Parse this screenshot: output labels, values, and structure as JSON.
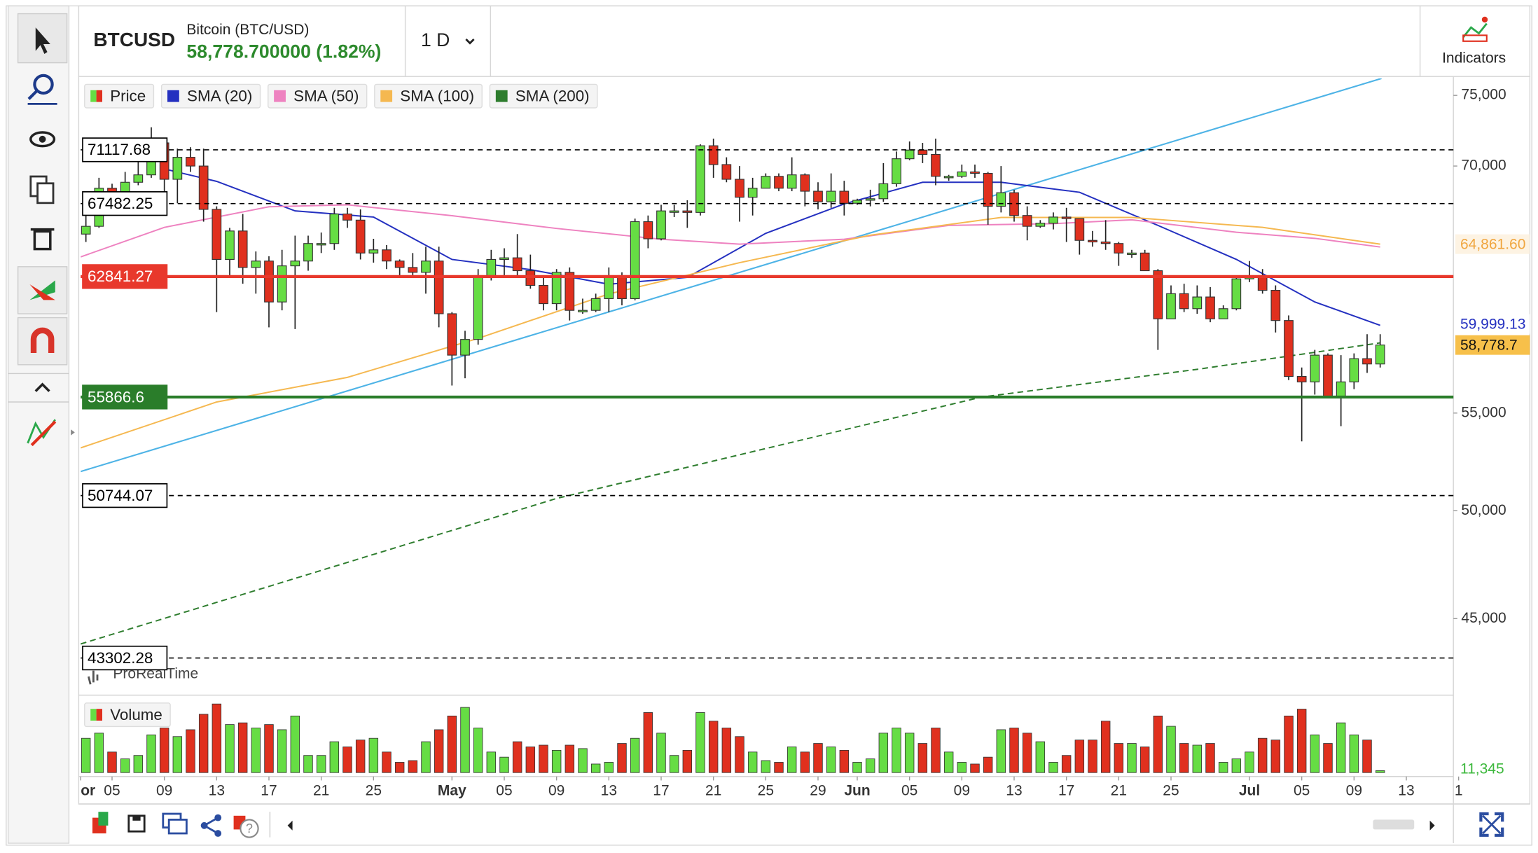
{
  "header": {
    "symbol": "BTCUSD",
    "name": "Bitcoin (BTC/USD)",
    "quote": "58,778.700000 (1.82%)",
    "interval": "1 D",
    "indicators": "Indicators"
  },
  "watermark": "ProRealTime",
  "chart_data": [
    {
      "type": "candlestick",
      "price_label": "Price",
      "up_color": "#66dd44",
      "down_color": "#e0301e",
      "log_scale": true,
      "xlim": [
        -0.4,
        104.6
      ],
      "ylim": [
        41800,
        76250
      ],
      "yticks": [
        {
          "value": 45000,
          "label": "45,000"
        },
        {
          "value": 50000,
          "label": "50,000"
        },
        {
          "value": 55000,
          "label": "55,000"
        },
        {
          "value": 70000,
          "label": "70,000"
        },
        {
          "value": 75000,
          "label": "75,000"
        }
      ],
      "xticks": [
        {
          "value": -0.4,
          "label": "or"
        },
        {
          "value": 2,
          "label": "05"
        },
        {
          "value": 6,
          "label": "09"
        },
        {
          "value": 10,
          "label": "13"
        },
        {
          "value": 14,
          "label": "17"
        },
        {
          "value": 18,
          "label": "21"
        },
        {
          "value": 22,
          "label": "25"
        },
        {
          "value": 28,
          "label": "May"
        },
        {
          "value": 32,
          "label": "05"
        },
        {
          "value": 36,
          "label": "09"
        },
        {
          "value": 40,
          "label": "13"
        },
        {
          "value": 44,
          "label": "17"
        },
        {
          "value": 48,
          "label": "21"
        },
        {
          "value": 52,
          "label": "25"
        },
        {
          "value": 56,
          "label": "29"
        },
        {
          "value": 59,
          "label": "Jun"
        },
        {
          "value": 63,
          "label": "05"
        },
        {
          "value": 67,
          "label": "09"
        },
        {
          "value": 71,
          "label": "13"
        },
        {
          "value": 75,
          "label": "17"
        },
        {
          "value": 79,
          "label": "21"
        },
        {
          "value": 83,
          "label": "25"
        },
        {
          "value": 89,
          "label": "Jul"
        },
        {
          "value": 93,
          "label": "05"
        },
        {
          "value": 97,
          "label": "09"
        },
        {
          "value": 101,
          "label": "13"
        },
        {
          "value": 105,
          "label": "1"
        }
      ],
      "open": [
        65500,
        66000,
        68500,
        67800,
        68900,
        69400,
        71600,
        69100,
        70600,
        70000,
        67100,
        63900,
        65700,
        63400,
        63800,
        61300,
        63500,
        63800,
        64900,
        64900,
        66800,
        66400,
        64300,
        64500,
        63800,
        63400,
        63100,
        63800,
        60600,
        58200,
        59100,
        62900,
        63900,
        64000,
        63200,
        62300,
        61200,
        63100,
        60800,
        60800,
        61500,
        62900,
        61500,
        66300,
        65200,
        67000,
        67000,
        66900,
        71400,
        70100,
        69100,
        67900,
        68500,
        69300,
        68500,
        69400,
        68300,
        67600,
        68300,
        67500,
        67700,
        67800,
        68800,
        70500,
        71100,
        70800,
        69300,
        69300,
        69600,
        69500,
        67300,
        68200,
        66700,
        66000,
        66200,
        66600,
        66500,
        65100,
        65000,
        64900,
        64300,
        64300,
        63200,
        60300,
        61800,
        60900,
        61600,
        60300,
        60900,
        62700,
        62900,
        62000,
        60200,
        57000,
        56700,
        58200,
        55900,
        56700,
        58000,
        57700
      ],
      "high": [
        66900,
        69200,
        68800,
        69600,
        70300,
        72700,
        71700,
        71200,
        71300,
        71200,
        67300,
        65900,
        66800,
        64400,
        64100,
        64500,
        65400,
        65400,
        65600,
        67200,
        67200,
        67100,
        65200,
        64800,
        63900,
        64300,
        64700,
        64700,
        60700,
        59600,
        63300,
        64500,
        64600,
        65500,
        64200,
        62900,
        63300,
        63400,
        61500,
        61800,
        63400,
        63100,
        66500,
        66700,
        67400,
        67400,
        67700,
        71500,
        71900,
        70600,
        70000,
        69200,
        69500,
        69500,
        70600,
        69500,
        68900,
        69500,
        69000,
        67800,
        68400,
        70200,
        71000,
        71700,
        71600,
        71900,
        69400,
        70100,
        70100,
        69600,
        70000,
        68400,
        67300,
        66400,
        66900,
        67200,
        66500,
        65700,
        66400,
        65000,
        64500,
        64500,
        63300,
        62300,
        62400,
        62300,
        62200,
        61100,
        62900,
        63800,
        63300,
        62300,
        60500,
        57500,
        58500,
        58300,
        58200,
        58300,
        59400,
        59400
      ],
      "low": [
        65000,
        65900,
        66900,
        67500,
        68700,
        69200,
        68200,
        67500,
        69600,
        66300,
        60700,
        62800,
        62400,
        61800,
        59800,
        60800,
        59700,
        63200,
        64300,
        64500,
        65900,
        63900,
        63700,
        63300,
        62900,
        62800,
        61800,
        59800,
        56500,
        56900,
        58800,
        62600,
        62900,
        62800,
        62100,
        60800,
        60800,
        60200,
        60600,
        60700,
        60700,
        61100,
        61400,
        64600,
        65100,
        66600,
        65900,
        66700,
        69200,
        68900,
        66300,
        66700,
        68500,
        68300,
        68300,
        67300,
        67100,
        67200,
        66700,
        67400,
        67300,
        67600,
        68600,
        70400,
        70200,
        68700,
        69000,
        69200,
        69200,
        66100,
        66900,
        66300,
        65100,
        65900,
        65800,
        65000,
        64200,
        64700,
        64500,
        63500,
        64000,
        63200,
        58500,
        60300,
        60700,
        60600,
        60100,
        60300,
        60800,
        62500,
        61800,
        59500,
        56800,
        53500,
        56000,
        55800,
        54300,
        56300,
        57200,
        57500
      ],
      "close": [
        66000,
        68500,
        67800,
        68900,
        69400,
        71600,
        69100,
        70600,
        70000,
        67100,
        63900,
        65700,
        63400,
        63800,
        61300,
        63500,
        63800,
        64900,
        64900,
        66800,
        66400,
        64300,
        64500,
        63800,
        63400,
        63100,
        63800,
        60600,
        58200,
        59100,
        62900,
        63900,
        64000,
        63200,
        62300,
        61200,
        63100,
        60800,
        60800,
        61500,
        62900,
        61500,
        66300,
        65200,
        67000,
        67000,
        66900,
        71400,
        70100,
        69100,
        67900,
        68500,
        69300,
        68500,
        69400,
        68300,
        67600,
        68300,
        67500,
        67700,
        67800,
        68800,
        70500,
        71100,
        70800,
        69300,
        69300,
        69600,
        69500,
        67300,
        68200,
        66700,
        66000,
        66200,
        66600,
        66500,
        65100,
        65000,
        64900,
        64300,
        64300,
        63200,
        60300,
        61800,
        60900,
        61600,
        60300,
        60900,
        62700,
        62900,
        62000,
        60200,
        57000,
        56700,
        58200,
        55900,
        56700,
        58000,
        57700,
        58778.7
      ],
      "series": [
        {
          "name": "SMA (20)",
          "color": "#2430c0",
          "dashed": false,
          "x": [
            6,
            10,
            16,
            22,
            28,
            34,
            40,
            46,
            52,
            58,
            64,
            70,
            76,
            82,
            88,
            94,
            99
          ],
          "values": [
            69800,
            68960,
            67000,
            66600,
            63900,
            63270,
            62370,
            62790,
            65550,
            67460,
            68900,
            68900,
            68230,
            66060,
            63900,
            61300,
            59920
          ]
        },
        {
          "name": "SMA (50)",
          "color": "#ee82c0",
          "dashed": false,
          "x": [
            -0.4,
            6,
            14,
            20,
            28,
            36,
            44,
            50,
            58,
            66,
            74,
            80,
            88,
            94,
            99
          ],
          "values": [
            64060,
            65930,
            67270,
            67400,
            66690,
            65860,
            65170,
            64860,
            65170,
            66060,
            66170,
            66420,
            65620,
            65230,
            64680
          ]
        },
        {
          "name": "SMA (100)",
          "color": "#f5b850",
          "dashed": false,
          "x": [
            -0.4,
            10,
            20,
            30,
            40,
            50,
            60,
            70,
            80,
            90,
            99
          ],
          "values": [
            53160,
            55600,
            56950,
            59160,
            61780,
            63700,
            65430,
            66570,
            66570,
            65930,
            64860
          ]
        },
        {
          "name": "SMA (200)",
          "color": "#2e7d2e",
          "dashed": true,
          "x": [
            -0.4,
            36,
            68.5,
            85,
            99
          ],
          "values": [
            43900,
            50600,
            55866,
            57400,
            58900
          ]
        }
      ],
      "trendline": {
        "color": "#4db3e6",
        "x": [
          -0.4,
          99.1
        ],
        "values": [
          51950,
          76250
        ]
      },
      "levels": [
        {
          "value": 71117.68,
          "style": "dashed",
          "color": "#000000"
        },
        {
          "value": 67482.25,
          "style": "dashed",
          "color": "#000000"
        },
        {
          "value": 62841.27,
          "style": "solid",
          "color": "#e8382c"
        },
        {
          "value": 55866.6,
          "style": "solid",
          "color": "#2a7d2a"
        },
        {
          "value": 50744.07,
          "style": "dashed",
          "color": "#000000"
        },
        {
          "value": 43302.28,
          "style": "dashed",
          "color": "#000000"
        }
      ],
      "badges": [
        {
          "value": 64861.6,
          "label": "64,861.60",
          "color": "#f0a640",
          "background": "#fdf3e3"
        },
        {
          "value": 59999.13,
          "label": "59,999.13",
          "color": "#2430c0",
          "background": "#ffffff"
        },
        {
          "value": 58778.7,
          "label": "58,778.7",
          "color": "#111111",
          "background": "#f7c04a"
        }
      ]
    },
    {
      "type": "bar",
      "title": "Volume",
      "ylim": [
        0,
        400000
      ],
      "values": [
        200000,
        230000,
        120000,
        80000,
        100000,
        220000,
        260000,
        210000,
        250000,
        340000,
        400000,
        280000,
        290000,
        260000,
        280000,
        250000,
        330000,
        100000,
        100000,
        180000,
        150000,
        190000,
        200000,
        120000,
        60000,
        70000,
        180000,
        250000,
        330000,
        380000,
        260000,
        120000,
        90000,
        180000,
        150000,
        160000,
        130000,
        160000,
        140000,
        50000,
        60000,
        170000,
        200000,
        350000,
        230000,
        100000,
        130000,
        350000,
        300000,
        260000,
        210000,
        120000,
        70000,
        60000,
        150000,
        120000,
        170000,
        150000,
        130000,
        60000,
        80000,
        230000,
        260000,
        230000,
        170000,
        260000,
        120000,
        60000,
        50000,
        90000,
        250000,
        260000,
        230000,
        180000,
        60000,
        100000,
        190000,
        190000,
        300000,
        170000,
        170000,
        150000,
        330000,
        270000,
        170000,
        160000,
        170000,
        60000,
        80000,
        120000,
        200000,
        190000,
        330000,
        370000,
        220000,
        170000,
        290000,
        220000,
        190000,
        11345
      ],
      "last_label": "11,345",
      "last_label_color": "#3cb83c"
    }
  ]
}
